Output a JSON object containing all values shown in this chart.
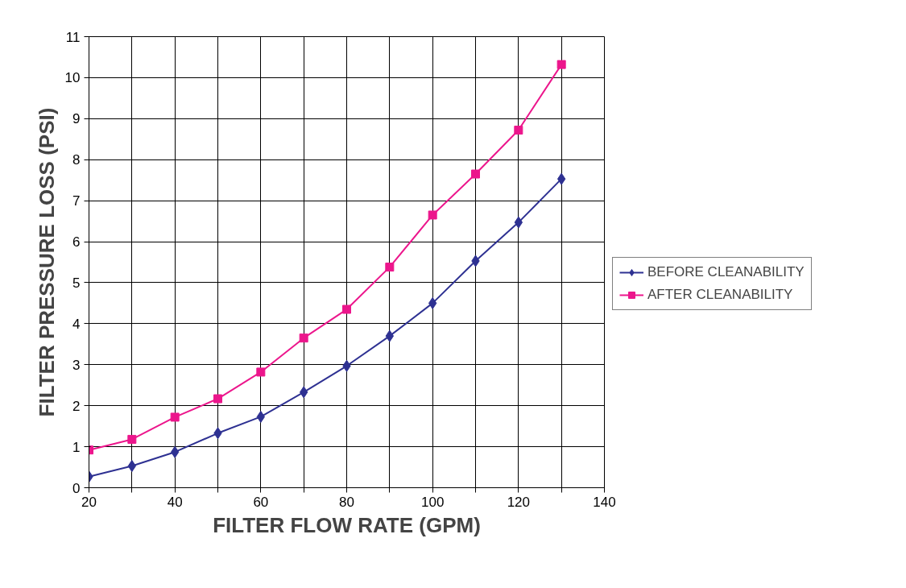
{
  "chart_data": {
    "type": "line",
    "xlabel": "FILTER FLOW RATE (GPM)",
    "ylabel": "FILTER PRESSURE LOSS (PSI)",
    "x": [
      20,
      30,
      40,
      50,
      60,
      70,
      80,
      90,
      100,
      110,
      120,
      130
    ],
    "series": [
      {
        "name": "BEFORE CLEANABILITY",
        "color": "#2e3192",
        "marker": "diamond",
        "values": [
          0.27,
          0.53,
          0.87,
          1.33,
          1.73,
          2.33,
          2.97,
          3.7,
          4.5,
          5.53,
          6.47,
          7.53
        ]
      },
      {
        "name": "AFTER CLEANABILITY",
        "color": "#ec168c",
        "marker": "square",
        "values": [
          0.92,
          1.18,
          1.72,
          2.17,
          2.82,
          3.65,
          4.35,
          5.38,
          6.65,
          7.65,
          8.72,
          10.32
        ]
      }
    ],
    "xlim": [
      20,
      140
    ],
    "ylim": [
      0,
      11
    ],
    "xticks": [
      20,
      {
        "value": 30,
        "label": null
      },
      40,
      {
        "value": 50,
        "label": null
      },
      60,
      {
        "value": 70,
        "label": null
      },
      80,
      {
        "value": 90,
        "label": null
      },
      100,
      {
        "value": 110,
        "label": null
      },
      120,
      {
        "value": 130,
        "label": null
      },
      140
    ],
    "yticks": [
      0,
      1,
      2,
      3,
      4,
      5,
      6,
      7,
      8,
      9,
      10,
      11
    ],
    "grid": true,
    "legend": "right",
    "line_style": "solid"
  }
}
